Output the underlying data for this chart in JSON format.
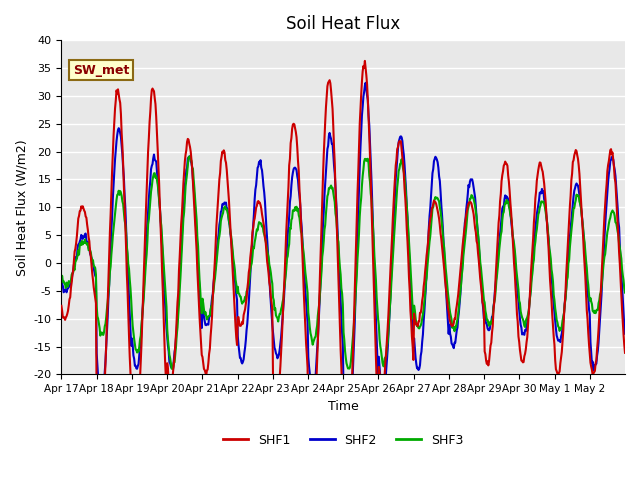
{
  "title": "Soil Heat Flux",
  "xlabel": "Time",
  "ylabel": "Soil Heat Flux (W/m2)",
  "ylim": [
    -20,
    40
  ],
  "annotation_text": "SW_met",
  "bg_color": "#e8e8e8",
  "grid_color": "white",
  "series": {
    "SHF1": {
      "color": "#cc0000",
      "lw": 1.5
    },
    "SHF2": {
      "color": "#0000cc",
      "lw": 1.5
    },
    "SHF3": {
      "color": "#00aa00",
      "lw": 1.5
    }
  },
  "xtick_labels": [
    "Apr 17",
    "Apr 18",
    "Apr 19",
    "Apr 20",
    "Apr 21",
    "Apr 22",
    "Apr 23",
    "Apr 24",
    "Apr 25",
    "Apr 26",
    "Apr 27",
    "Apr 28",
    "Apr 29",
    "Apr 30",
    "May 1",
    "May 2"
  ],
  "ytick_labels": [
    -20,
    -15,
    -10,
    -5,
    0,
    5,
    10,
    15,
    20,
    25,
    30,
    35,
    40
  ],
  "shf1_day_amps": [
    10,
    31,
    31,
    22,
    20,
    11,
    25,
    33,
    36,
    22,
    11,
    11,
    18,
    18,
    20,
    20
  ],
  "shf2_day_amps": [
    5,
    24,
    19,
    19,
    11,
    18,
    17,
    23,
    32,
    23,
    19,
    15,
    12,
    13,
    14,
    19
  ],
  "shf3_day_amps": [
    4,
    13,
    16,
    19,
    10,
    7,
    10,
    14,
    19,
    18,
    12,
    12,
    11,
    11,
    12,
    9
  ],
  "shf1_phase": 0.35,
  "shf2_phase": 0.38,
  "shf3_phase": 0.4,
  "n_days": 16,
  "points_per_day": 48
}
